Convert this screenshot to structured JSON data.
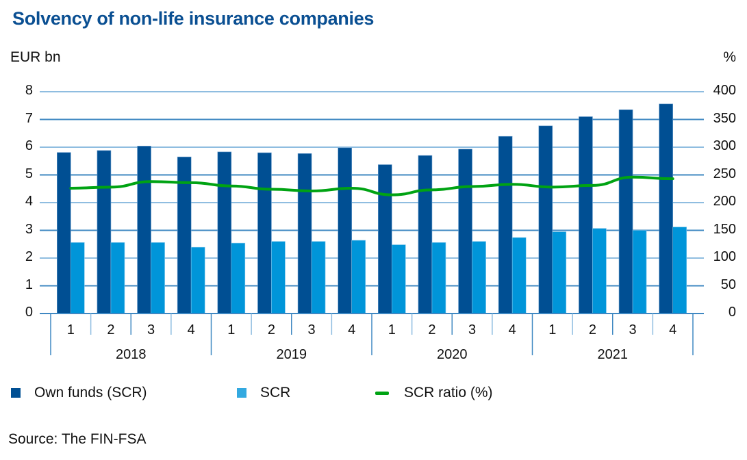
{
  "title": "Solvency of non-life insurance companies",
  "axes": {
    "left_unit": "EUR bn",
    "right_unit": "%",
    "left_ticks": [
      "0",
      "1",
      "2",
      "3",
      "4",
      "5",
      "6",
      "7",
      "8"
    ],
    "right_ticks": [
      "0",
      "50",
      "100",
      "150",
      "200",
      "250",
      "300",
      "350",
      "400"
    ]
  },
  "legend": {
    "own_funds": "Own funds (SCR)",
    "scr": "SCR",
    "ratio": "SCR ratio (%)"
  },
  "source": "Source: The FIN-FSA",
  "colors": {
    "title": "#0a4f92",
    "own_funds": "#004f93",
    "scr": "#0095d9",
    "ratio": "#00a313",
    "grid": "#4a90c4"
  },
  "chart_data": {
    "type": "bar",
    "title": "Solvency of non-life insurance companies",
    "xlabel": "",
    "ylabel": "EUR bn",
    "y2label": "%",
    "ylim": [
      0,
      8
    ],
    "y2lim": [
      0,
      400
    ],
    "grid": true,
    "legend_position": "bottom",
    "years": [
      "2018",
      "2019",
      "2020",
      "2021"
    ],
    "categories": [
      "2018 Q1",
      "2018 Q2",
      "2018 Q3",
      "2018 Q4",
      "2019 Q1",
      "2019 Q2",
      "2019 Q3",
      "2019 Q4",
      "2020 Q1",
      "2020 Q2",
      "2020 Q3",
      "2020 Q4",
      "2021 Q1",
      "2021 Q2",
      "2021 Q3",
      "2021 Q4"
    ],
    "quarter_labels": [
      "1",
      "2",
      "3",
      "4",
      "1",
      "2",
      "3",
      "4",
      "1",
      "2",
      "3",
      "4",
      "1",
      "2",
      "3",
      "4"
    ],
    "series": [
      {
        "name": "Own funds (SCR)",
        "type": "bar",
        "axis": "left",
        "values": [
          5.81,
          5.88,
          6.04,
          5.65,
          5.83,
          5.8,
          5.77,
          5.98,
          5.37,
          5.7,
          5.93,
          6.39,
          6.77,
          7.1,
          7.35,
          7.56
        ]
      },
      {
        "name": "SCR",
        "type": "bar",
        "axis": "left",
        "values": [
          2.56,
          2.56,
          2.56,
          2.39,
          2.54,
          2.6,
          2.6,
          2.64,
          2.48,
          2.56,
          2.6,
          2.74,
          2.95,
          3.07,
          3.0,
          3.12
        ]
      },
      {
        "name": "SCR ratio (%)",
        "type": "line",
        "axis": "right",
        "values": [
          226,
          228,
          238,
          236,
          230,
          224,
          221,
          226,
          214,
          223,
          229,
          233,
          228,
          231,
          246,
          243
        ]
      }
    ]
  }
}
